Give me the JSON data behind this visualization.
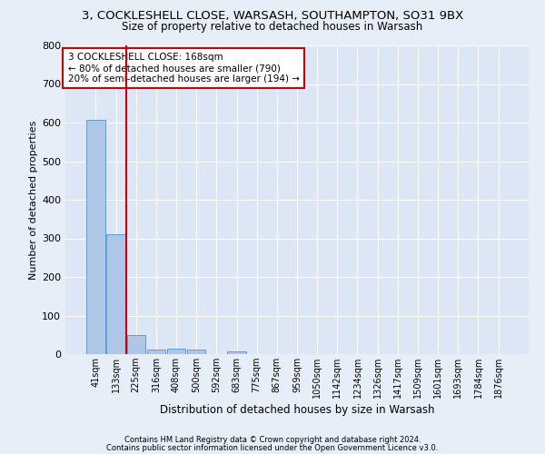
{
  "title1": "3, COCKLESHELL CLOSE, WARSASH, SOUTHAMPTON, SO31 9BX",
  "title2": "Size of property relative to detached houses in Warsash",
  "xlabel": "Distribution of detached houses by size in Warsash",
  "ylabel": "Number of detached properties",
  "footer1": "Contains HM Land Registry data © Crown copyright and database right 2024.",
  "footer2": "Contains public sector information licensed under the Open Government Licence v3.0.",
  "annotation_line1": "3 COCKLESHELL CLOSE: 168sqm",
  "annotation_line2": "← 80% of detached houses are smaller (790)",
  "annotation_line3": "20% of semi-detached houses are larger (194) →",
  "bar_color": "#aec6e8",
  "bar_edge_color": "#5a9fd4",
  "vline_color": "#cc0000",
  "vline_x": 1.5,
  "categories": [
    "41sqm",
    "133sqm",
    "225sqm",
    "316sqm",
    "408sqm",
    "500sqm",
    "592sqm",
    "683sqm",
    "775sqm",
    "867sqm",
    "959sqm",
    "1050sqm",
    "1142sqm",
    "1234sqm",
    "1326sqm",
    "1417sqm",
    "1509sqm",
    "1601sqm",
    "1693sqm",
    "1784sqm",
    "1876sqm"
  ],
  "values": [
    608,
    310,
    49,
    12,
    13,
    12,
    0,
    8,
    0,
    0,
    0,
    0,
    0,
    0,
    0,
    0,
    0,
    0,
    0,
    0,
    0
  ],
  "ylim": [
    0,
    800
  ],
  "yticks": [
    0,
    100,
    200,
    300,
    400,
    500,
    600,
    700,
    800
  ],
  "background_color": "#e8eef7",
  "plot_bg_color": "#dce6f5",
  "grid_color": "#ffffff",
  "title1_fontsize": 9.5,
  "title2_fontsize": 8.5,
  "ylabel_fontsize": 8,
  "xlabel_fontsize": 8.5,
  "tick_fontsize": 7,
  "footer_fontsize": 6,
  "annot_fontsize": 7.5
}
